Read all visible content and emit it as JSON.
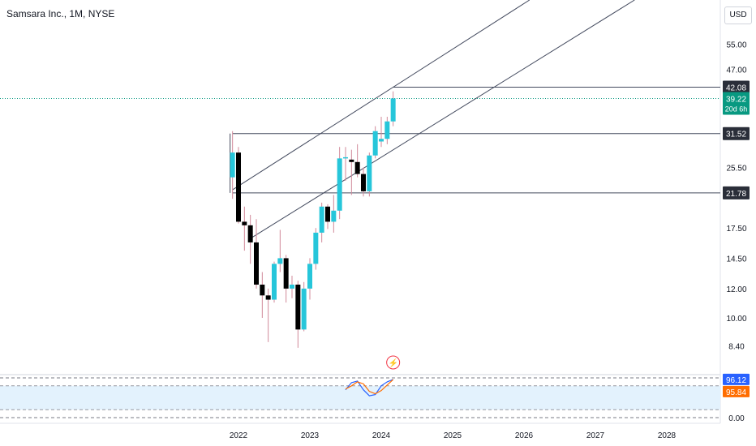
{
  "title": "Samsara Inc., 1M, NYSE",
  "currency_label": "USD",
  "colors": {
    "up": "#26c6da",
    "down": "#000000",
    "wick": "#d0899a",
    "line": "#434a5e",
    "price_line": "#089981",
    "stoch_k": "#2962ff",
    "stoch_d": "#ff6d00",
    "band_fill": "#e3f2fd",
    "grid": "#e0e3eb"
  },
  "chart_data": [
    {
      "type": "candlestick",
      "scale": "log",
      "ylim": [
        7.5,
        70
      ],
      "xlim": [
        "2021-10",
        "2028-11"
      ],
      "x_tick_labels": [
        "2022",
        "2023",
        "2024",
        "2025",
        "2026",
        "2027",
        "2028"
      ],
      "y_tick_labels": [
        "55.00",
        "47.00",
        "25.50",
        "17.50",
        "14.50",
        "12.00",
        "10.00",
        "8.40"
      ],
      "candles": [
        {
          "t": "2021-12",
          "o": 24.0,
          "h": 32.0,
          "l": 21.0,
          "c": 28.0
        },
        {
          "t": "2022-01",
          "o": 28.0,
          "h": 29.0,
          "l": 18.0,
          "c": 18.2
        },
        {
          "t": "2022-02",
          "o": 18.2,
          "h": 20.0,
          "l": 15.2,
          "c": 17.8
        },
        {
          "t": "2022-03",
          "o": 17.8,
          "h": 19.0,
          "l": 14.0,
          "c": 16.0
        },
        {
          "t": "2022-04",
          "o": 16.0,
          "h": 18.5,
          "l": 12.0,
          "c": 12.3
        },
        {
          "t": "2022-05",
          "o": 12.3,
          "h": 13.3,
          "l": 10.0,
          "c": 11.5
        },
        {
          "t": "2022-06",
          "o": 11.5,
          "h": 12.0,
          "l": 8.6,
          "c": 11.2
        },
        {
          "t": "2022-07",
          "o": 11.2,
          "h": 14.2,
          "l": 11.0,
          "c": 14.0
        },
        {
          "t": "2022-08",
          "o": 14.0,
          "h": 17.3,
          "l": 13.3,
          "c": 14.5
        },
        {
          "t": "2022-09",
          "o": 14.5,
          "h": 14.8,
          "l": 11.0,
          "c": 12.0
        },
        {
          "t": "2022-10",
          "o": 12.0,
          "h": 13.0,
          "l": 11.3,
          "c": 12.3
        },
        {
          "t": "2022-11",
          "o": 12.3,
          "h": 12.6,
          "l": 8.3,
          "c": 9.3
        },
        {
          "t": "2022-12",
          "o": 9.3,
          "h": 12.5,
          "l": 9.2,
          "c": 12.0
        },
        {
          "t": "2023-01",
          "o": 12.0,
          "h": 14.5,
          "l": 11.2,
          "c": 14.0
        },
        {
          "t": "2023-02",
          "o": 14.0,
          "h": 17.5,
          "l": 13.5,
          "c": 17.0
        },
        {
          "t": "2023-03",
          "o": 17.0,
          "h": 20.5,
          "l": 16.0,
          "c": 20.0
        },
        {
          "t": "2023-04",
          "o": 20.0,
          "h": 20.3,
          "l": 17.4,
          "c": 18.2
        },
        {
          "t": "2023-05",
          "o": 18.2,
          "h": 21.5,
          "l": 17.0,
          "c": 19.5
        },
        {
          "t": "2023-06",
          "o": 19.5,
          "h": 29.0,
          "l": 18.5,
          "c": 27.0
        },
        {
          "t": "2023-07",
          "o": 27.0,
          "h": 29.0,
          "l": 23.5,
          "c": 27.2
        },
        {
          "t": "2023-08",
          "o": 26.8,
          "h": 28.5,
          "l": 21.5,
          "c": 26.4
        },
        {
          "t": "2023-09",
          "o": 26.4,
          "h": 29.5,
          "l": 24.0,
          "c": 24.5
        },
        {
          "t": "2023-10",
          "o": 24.5,
          "h": 25.5,
          "l": 21.3,
          "c": 22.0
        },
        {
          "t": "2023-11",
          "o": 22.0,
          "h": 28.0,
          "l": 21.3,
          "c": 27.5
        },
        {
          "t": "2023-12",
          "o": 27.5,
          "h": 33.0,
          "l": 27.0,
          "c": 32.0
        },
        {
          "t": "2024-01",
          "o": 30.0,
          "h": 35.0,
          "l": 29.0,
          "c": 30.5
        },
        {
          "t": "2024-02",
          "o": 30.5,
          "h": 35.0,
          "l": 29.5,
          "c": 34.0
        },
        {
          "t": "2024-03",
          "o": 34.0,
          "h": 41.0,
          "l": 33.0,
          "c": 39.22
        }
      ],
      "horizontal_levels": [
        {
          "value": 42.08,
          "label": "42.08",
          "from": "2024-03"
        },
        {
          "value": 31.52,
          "label": "31.52",
          "from": "2021-12"
        },
        {
          "value": 21.78,
          "label": "21.78",
          "from": "2021-12"
        }
      ],
      "trend_lines": [
        {
          "from": {
            "t": "2021-12",
            "v": 22.2
          },
          "to": {
            "t": "2024-03",
            "v": 42.08
          }
        },
        {
          "from": {
            "t": "2022-03",
            "v": 16.4
          },
          "to": {
            "t": "2024-01",
            "v": 27.2
          }
        }
      ],
      "vertical_segments": [
        {
          "t": "2021-12",
          "from": 21.78,
          "to": 31.52
        }
      ],
      "current_price": {
        "value": 39.22,
        "label": "39.22",
        "countdown": "20d 6h"
      },
      "event_marker": "⚡"
    },
    {
      "type": "line",
      "indicator": "stochastic",
      "ylim": [
        0,
        100
      ],
      "y_tick_labels": [
        "0.00"
      ],
      "band": [
        20,
        80
      ],
      "series": [
        {
          "key": "k",
          "color": "#2962ff",
          "x": [
            "2023-07",
            "2023-08",
            "2023-09",
            "2023-10",
            "2023-11",
            "2023-12",
            "2024-01",
            "2024-02",
            "2024-03"
          ],
          "values": [
            70,
            88,
            92,
            70,
            55,
            58,
            80,
            90,
            96.12
          ]
        },
        {
          "key": "d",
          "color": "#ff6d00",
          "x": [
            "2023-07",
            "2023-08",
            "2023-09",
            "2023-10",
            "2023-11",
            "2023-12",
            "2024-01",
            "2024-02",
            "2024-03"
          ],
          "values": [
            72,
            80,
            90,
            85,
            66,
            60,
            68,
            82,
            95.84
          ]
        }
      ],
      "labels": {
        "k": "96.12",
        "d": "95.84"
      }
    }
  ]
}
